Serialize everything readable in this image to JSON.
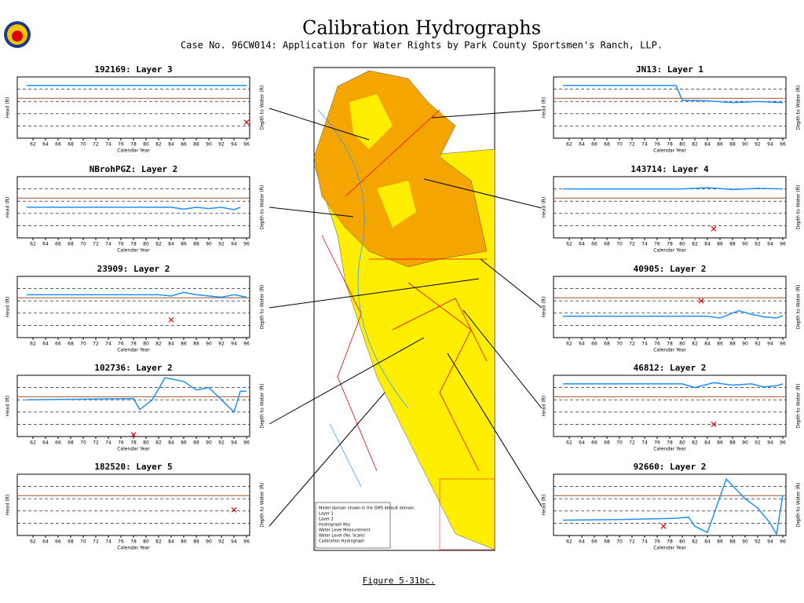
{
  "header": {
    "title": "Calibration Hydrographs",
    "subtitle": "Case No. 96CW014: Application for Water Rights by Park County Sportsmen's Ranch, LLP."
  },
  "caption": "Figure 5-31bc.",
  "map_key": [
    "Model domain shown in the GMS default domain.",
    "Layer 1",
    "Layer 2",
    "Hydrograph Key",
    "Water Level Measurement",
    "Water Level (No. Scale)",
    "Calibration Hydrograph"
  ],
  "chart_data": [
    {
      "type": "line",
      "title": "192169: Layer 3",
      "x_label": "Calendar Year",
      "y_label": "Head (ft)",
      "y2_label": "Depth to Water (ft)",
      "xlim": [
        61,
        96
      ],
      "ylim": [
        0,
        10
      ],
      "xticks": [
        62,
        64,
        66,
        68,
        70,
        72,
        74,
        76,
        78,
        80,
        82,
        84,
        86,
        88,
        90,
        92,
        94,
        96
      ],
      "series": [
        {
          "color": "#1e90ff",
          "x": [
            61,
            96
          ],
          "values": [
            8.6,
            8.6
          ]
        },
        {
          "color": "#e00000",
          "marker": "x",
          "x": [
            96
          ],
          "values": [
            2.6
          ]
        }
      ]
    },
    {
      "type": "line",
      "title": "NBrohPGZ: Layer 2",
      "x_label": "Calendar Year",
      "y_label": "Head (ft)",
      "y2_label": "Depth to Water (ft)",
      "xlim": [
        61,
        96
      ],
      "ylim": [
        0,
        10
      ],
      "xticks": [
        62,
        64,
        66,
        68,
        70,
        72,
        74,
        76,
        78,
        80,
        82,
        84,
        86,
        88,
        90,
        92,
        94,
        96
      ],
      "series": [
        {
          "color": "#1e90ff",
          "x": [
            61,
            84,
            86,
            88,
            90,
            92,
            94,
            95
          ],
          "values": [
            5,
            5,
            4.7,
            5,
            4.8,
            5,
            4.6,
            5
          ]
        }
      ]
    },
    {
      "type": "line",
      "title": "23909: Layer 2",
      "x_label": "Calendar Year",
      "y_label": "Head (ft)",
      "y2_label": "Depth to Water (ft)",
      "xlim": [
        61,
        96
      ],
      "ylim": [
        0,
        10
      ],
      "xticks": [
        62,
        64,
        66,
        68,
        70,
        72,
        74,
        76,
        78,
        80,
        82,
        84,
        86,
        88,
        90,
        92,
        94,
        96
      ],
      "series": [
        {
          "color": "#1e90ff",
          "x": [
            61,
            82,
            84,
            86,
            88,
            90,
            92,
            94,
            96
          ],
          "values": [
            7,
            7,
            6.8,
            7.4,
            7,
            6.8,
            6.6,
            7,
            6.6
          ]
        },
        {
          "color": "#e00000",
          "marker": "x",
          "x": [
            84
          ],
          "values": [
            2.9
          ]
        }
      ]
    },
    {
      "type": "line",
      "title": "102736: Layer 2",
      "x_label": "Calendar Year",
      "y_label": "Head (ft)",
      "y2_label": "Depth to Water (ft)",
      "xlim": [
        61,
        96
      ],
      "ylim": [
        0,
        10
      ],
      "xticks": [
        62,
        64,
        66,
        68,
        70,
        72,
        74,
        76,
        78,
        80,
        82,
        84,
        86,
        88,
        90,
        92,
        94,
        96
      ],
      "series": [
        {
          "color": "#1e90ff",
          "x": [
            61,
            78,
            79,
            81,
            83,
            86,
            88,
            90,
            92,
            94,
            95,
            96
          ],
          "values": [
            6,
            6.2,
            4.4,
            6,
            9.6,
            9,
            7.6,
            8,
            6,
            4,
            7.4,
            7.4
          ]
        },
        {
          "color": "#e00000",
          "marker": "x",
          "x": [
            78
          ],
          "values": [
            0.3
          ]
        }
      ]
    },
    {
      "type": "line",
      "title": "182520: Layer 5",
      "x_label": "Calendar Year",
      "y_label": "Head (ft)",
      "y2_label": "Depth to Water (ft)",
      "xlim": [
        61,
        96
      ],
      "ylim": [
        0,
        10
      ],
      "xticks": [
        62,
        64,
        66,
        68,
        70,
        72,
        74,
        76,
        78,
        80,
        82,
        84,
        86,
        88,
        90,
        92,
        94,
        96
      ],
      "series": [
        {
          "color": "#e00000",
          "marker": "x",
          "x": [
            94
          ],
          "values": [
            4.2
          ]
        }
      ]
    },
    {
      "type": "line",
      "title": "JN13: Layer 1",
      "x_label": "Calendar Year",
      "y_label": "Head (ft)",
      "y2_label": "Depth to Water (ft)",
      "xlim": [
        61,
        96
      ],
      "ylim": [
        0,
        10
      ],
      "xticks": [
        62,
        64,
        66,
        68,
        70,
        72,
        74,
        76,
        78,
        80,
        82,
        84,
        86,
        88,
        90,
        92,
        94,
        96
      ],
      "series": [
        {
          "color": "#1e90ff",
          "x": [
            61,
            79,
            80,
            84,
            88,
            92,
            96
          ],
          "values": [
            8.6,
            8.6,
            6.2,
            6.1,
            5.8,
            6,
            5.8
          ]
        }
      ]
    },
    {
      "type": "line",
      "title": "143714: Layer 4",
      "x_label": "Calendar Year",
      "y_label": "Head (ft)",
      "y2_label": "Depth to Water (ft)",
      "xlim": [
        61,
        96
      ],
      "ylim": [
        0,
        10
      ],
      "xticks": [
        62,
        64,
        66,
        68,
        70,
        72,
        74,
        76,
        78,
        80,
        82,
        84,
        86,
        88,
        90,
        92,
        94,
        96
      ],
      "series": [
        {
          "color": "#1e90ff",
          "x": [
            61,
            80,
            84,
            88,
            92,
            96
          ],
          "values": [
            8,
            8,
            8.2,
            7.9,
            8.1,
            8
          ]
        },
        {
          "color": "#e00000",
          "marker": "x",
          "x": [
            85
          ],
          "values": [
            1.5
          ]
        }
      ]
    },
    {
      "type": "line",
      "title": "40905: Layer 2",
      "x_label": "Calendar Year",
      "y_label": "Head (ft)",
      "y2_label": "Depth to Water (ft)",
      "xlim": [
        61,
        96
      ],
      "ylim": [
        0,
        10
      ],
      "xticks": [
        62,
        64,
        66,
        68,
        70,
        72,
        74,
        76,
        78,
        80,
        82,
        84,
        86,
        88,
        90,
        92,
        94,
        96
      ],
      "series": [
        {
          "color": "#1e90ff",
          "x": [
            61,
            84,
            86,
            89,
            91,
            93,
            95,
            96
          ],
          "values": [
            3.5,
            3.5,
            3.2,
            4.4,
            3.8,
            3.4,
            3.2,
            3.6
          ]
        },
        {
          "color": "#e00000",
          "marker": "x",
          "x": [
            83
          ],
          "values": [
            6
          ]
        }
      ]
    },
    {
      "type": "line",
      "title": "46812: Layer 2",
      "x_label": "Calendar Year",
      "y_label": "Head (ft)",
      "y2_label": "Depth to Water (ft)",
      "xlim": [
        61,
        96
      ],
      "ylim": [
        0,
        10
      ],
      "xticks": [
        62,
        64,
        66,
        68,
        70,
        72,
        74,
        76,
        78,
        80,
        82,
        84,
        86,
        88,
        90,
        92,
        94,
        96
      ],
      "series": [
        {
          "color": "#1e90ff",
          "x": [
            61,
            80,
            82,
            85,
            88,
            91,
            93,
            95,
            96
          ],
          "values": [
            8.6,
            8.6,
            8,
            8.8,
            8.4,
            8.6,
            8.1,
            8.3,
            8.6
          ]
        },
        {
          "color": "#e00000",
          "marker": "x",
          "x": [
            85
          ],
          "values": [
            2
          ]
        }
      ]
    },
    {
      "type": "line",
      "title": "92660: Layer 2",
      "x_label": "Calendar Year",
      "y_label": "Head (ft)",
      "y2_label": "Depth to Water (ft)",
      "xlim": [
        61,
        96
      ],
      "ylim": [
        0,
        10
      ],
      "xticks": [
        62,
        64,
        66,
        68,
        70,
        72,
        74,
        76,
        78,
        80,
        82,
        84,
        86,
        88,
        90,
        92,
        94,
        96
      ],
      "series": [
        {
          "color": "#1e90ff",
          "x": [
            61,
            70,
            79,
            81,
            82,
            84,
            87,
            90,
            92,
            94,
            95,
            96
          ],
          "values": [
            2.5,
            2.6,
            2.8,
            3,
            1.5,
            0.5,
            9.2,
            6,
            4.5,
            2,
            0.2,
            6.6
          ]
        },
        {
          "color": "#e00000",
          "marker": "x",
          "x": [
            77
          ],
          "values": [
            1.5
          ]
        }
      ]
    }
  ]
}
